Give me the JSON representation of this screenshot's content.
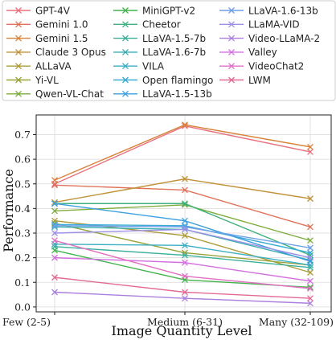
{
  "chart_data": {
    "type": "line",
    "title": "",
    "xlabel": "Image Quantity Level",
    "ylabel": "Performance",
    "categories": [
      "Few (2-5)",
      "Medium (6-31)",
      "Many (32-109)"
    ],
    "yticks": [
      "0.0",
      "0.1",
      "0.2",
      "0.3",
      "0.4",
      "0.5",
      "0.6",
      "0.7"
    ],
    "ylim": [
      -0.02,
      0.78
    ],
    "grid": true,
    "legend_position": "top",
    "marker": "x",
    "series": [
      {
        "name": "GPT-4V",
        "color": "#e8717e",
        "values": [
          0.5,
          0.735,
          0.63
        ]
      },
      {
        "name": "Gemini 1.0",
        "color": "#e0735a",
        "values": [
          0.495,
          0.475,
          0.325
        ]
      },
      {
        "name": "Gemini 1.5",
        "color": "#d9823a",
        "values": [
          0.515,
          0.74,
          0.65
        ]
      },
      {
        "name": "Claude 3 Opus",
        "color": "#c2923a",
        "values": [
          0.425,
          0.52,
          0.44
        ]
      },
      {
        "name": "ALLaVA",
        "color": "#ad9b38",
        "values": [
          0.35,
          0.29,
          0.14
        ]
      },
      {
        "name": "Yi-VL",
        "color": "#9aa33a",
        "values": [
          0.34,
          0.22,
          0.17
        ]
      },
      {
        "name": "Qwen-VL-Chat",
        "color": "#7fad3d",
        "values": [
          0.39,
          0.415,
          0.27
        ]
      },
      {
        "name": "MiniGPT-v2",
        "color": "#41b34a",
        "values": [
          0.23,
          0.11,
          0.08
        ]
      },
      {
        "name": "Cheetor",
        "color": "#3eb07d",
        "values": [
          0.42,
          0.42,
          0.21
        ]
      },
      {
        "name": "LLaVA-1.5-7b",
        "color": "#3ab09a",
        "values": [
          0.245,
          0.21,
          0.16
        ]
      },
      {
        "name": "LLaVA-1.6-7b",
        "color": "#38aeb0",
        "values": [
          0.325,
          0.315,
          0.19
        ]
      },
      {
        "name": "VILA",
        "color": "#3aaec4",
        "values": [
          0.255,
          0.25,
          0.17
        ]
      },
      {
        "name": "Open flamingo",
        "color": "#3aabd6",
        "values": [
          0.335,
          0.33,
          0.22
        ]
      },
      {
        "name": "LLaVA-1.5-13b",
        "color": "#3c9fdf",
        "values": [
          0.42,
          0.35,
          0.185
        ]
      },
      {
        "name": "LLaVA-1.6-13b",
        "color": "#6e9fe8",
        "values": [
          0.33,
          0.325,
          0.24
        ]
      },
      {
        "name": "LLaMA-VID",
        "color": "#9d8fe6",
        "values": [
          0.3,
          0.315,
          0.2
        ]
      },
      {
        "name": "Video-LLaMA-2",
        "color": "#ab7fe0",
        "values": [
          0.06,
          0.035,
          0.015
        ]
      },
      {
        "name": "Valley",
        "color": "#d46fe0",
        "values": [
          0.2,
          0.18,
          0.105
        ]
      },
      {
        "name": "VideoChat2",
        "color": "#e36ec4",
        "values": [
          0.27,
          0.125,
          0.075
        ]
      },
      {
        "name": "LWM",
        "color": "#e26a96",
        "values": [
          0.12,
          0.06,
          0.035
        ]
      }
    ]
  }
}
